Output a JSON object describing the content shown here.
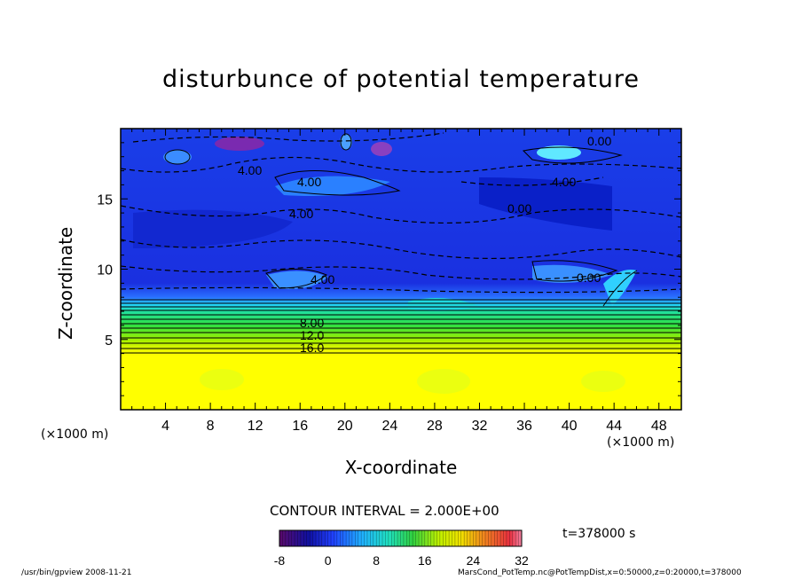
{
  "chart_data": {
    "type": "heatmap",
    "title": "disturbunce of potential temperature",
    "xlabel": "X-coordinate",
    "ylabel": "Z-coordinate",
    "x_unit": "(×1000 m)",
    "xlim": [
      0,
      50
    ],
    "ylim": [
      0,
      20
    ],
    "x_ticks": [
      "4",
      "8",
      "12",
      "16",
      "20",
      "24",
      "28",
      "32",
      "36",
      "40",
      "44",
      "48"
    ],
    "y_ticks": [
      "5",
      "10",
      "15"
    ],
    "contour_labels": [
      "0.00",
      "4.00",
      "4.00",
      "4.00",
      "0.00",
      "4.00",
      "4.00",
      "0.00",
      "8.00",
      "12.0",
      "16.0"
    ],
    "colorbar": {
      "ticks": [
        "-8",
        "0",
        "8",
        "16",
        "24",
        "32"
      ],
      "range": [
        -8,
        32
      ]
    },
    "contour_interval": "CONTOUR INTERVAL = 2.000E+00",
    "time": "t=378000 s",
    "footer_left": "/usr/bin/gpview   2008-11-21",
    "footer_right": "MarsCond_PotTemp.nc@PotTempDist,x=0:50000,z=0:20000,t=378000"
  }
}
